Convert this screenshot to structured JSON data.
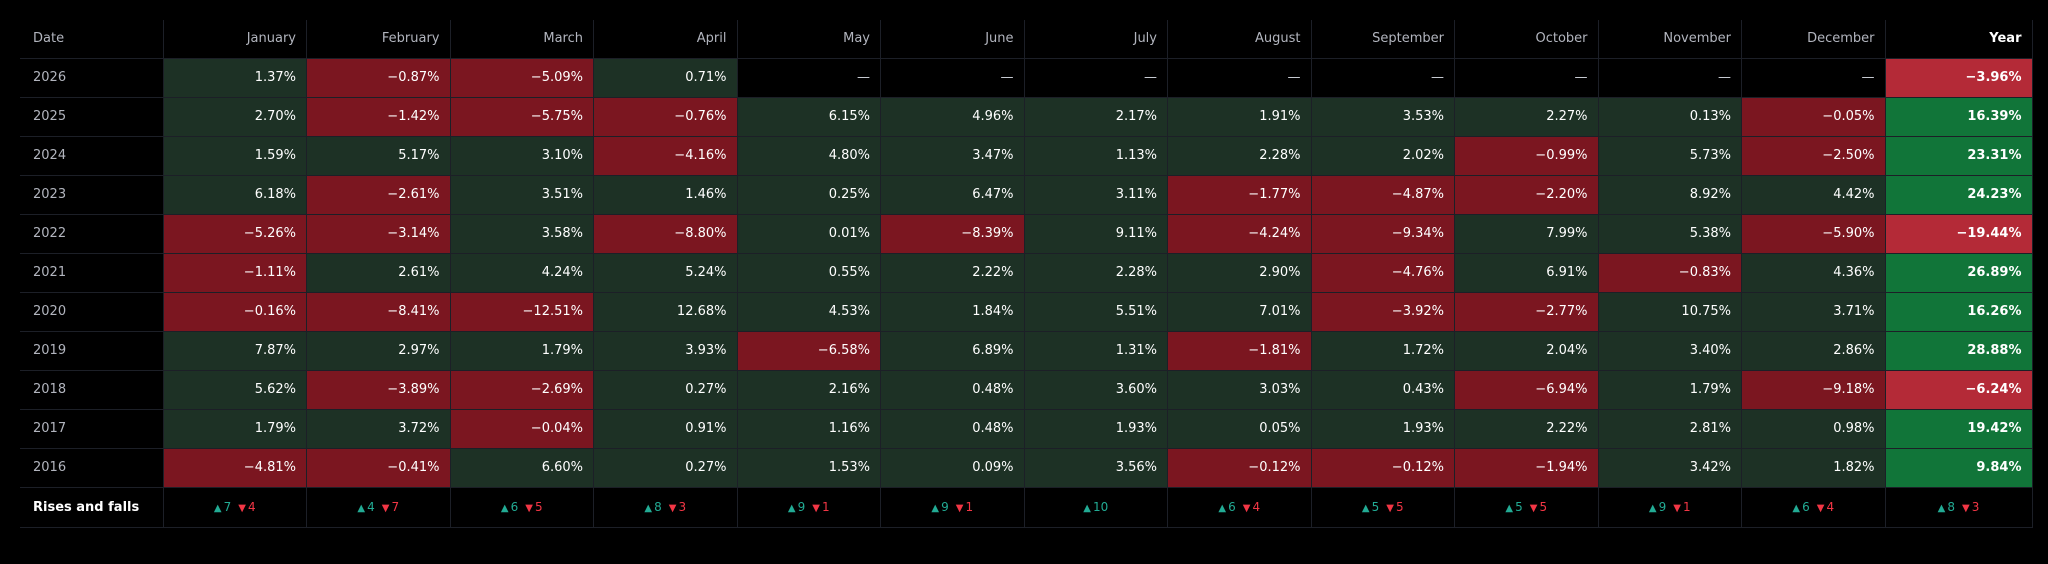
{
  "header": {
    "date_label": "Date",
    "months": [
      "January",
      "February",
      "March",
      "April",
      "May",
      "June",
      "July",
      "August",
      "September",
      "October",
      "November",
      "December"
    ],
    "year_label": "Year"
  },
  "rows": [
    {
      "year": "2026",
      "values": [
        "1.37%",
        "−0.87%",
        "−5.09%",
        "0.71%",
        "—",
        "—",
        "—",
        "—",
        "—",
        "—",
        "—",
        "—"
      ],
      "total": "−3.96%"
    },
    {
      "year": "2025",
      "values": [
        "2.70%",
        "−1.42%",
        "−5.75%",
        "−0.76%",
        "6.15%",
        "4.96%",
        "2.17%",
        "1.91%",
        "3.53%",
        "2.27%",
        "0.13%",
        "−0.05%"
      ],
      "total": "16.39%"
    },
    {
      "year": "2024",
      "values": [
        "1.59%",
        "5.17%",
        "3.10%",
        "−4.16%",
        "4.80%",
        "3.47%",
        "1.13%",
        "2.28%",
        "2.02%",
        "−0.99%",
        "5.73%",
        "−2.50%"
      ],
      "total": "23.31%"
    },
    {
      "year": "2023",
      "values": [
        "6.18%",
        "−2.61%",
        "3.51%",
        "1.46%",
        "0.25%",
        "6.47%",
        "3.11%",
        "−1.77%",
        "−4.87%",
        "−2.20%",
        "8.92%",
        "4.42%"
      ],
      "total": "24.23%"
    },
    {
      "year": "2022",
      "values": [
        "−5.26%",
        "−3.14%",
        "3.58%",
        "−8.80%",
        "0.01%",
        "−8.39%",
        "9.11%",
        "−4.24%",
        "−9.34%",
        "7.99%",
        "5.38%",
        "−5.90%"
      ],
      "total": "−19.44%"
    },
    {
      "year": "2021",
      "values": [
        "−1.11%",
        "2.61%",
        "4.24%",
        "5.24%",
        "0.55%",
        "2.22%",
        "2.28%",
        "2.90%",
        "−4.76%",
        "6.91%",
        "−0.83%",
        "4.36%"
      ],
      "total": "26.89%"
    },
    {
      "year": "2020",
      "values": [
        "−0.16%",
        "−8.41%",
        "−12.51%",
        "12.68%",
        "4.53%",
        "1.84%",
        "5.51%",
        "7.01%",
        "−3.92%",
        "−2.77%",
        "10.75%",
        "3.71%"
      ],
      "total": "16.26%"
    },
    {
      "year": "2019",
      "values": [
        "7.87%",
        "2.97%",
        "1.79%",
        "3.93%",
        "−6.58%",
        "6.89%",
        "1.31%",
        "−1.81%",
        "1.72%",
        "2.04%",
        "3.40%",
        "2.86%"
      ],
      "total": "28.88%"
    },
    {
      "year": "2018",
      "values": [
        "5.62%",
        "−3.89%",
        "−2.69%",
        "0.27%",
        "2.16%",
        "0.48%",
        "3.60%",
        "3.03%",
        "0.43%",
        "−6.94%",
        "1.79%",
        "−9.18%"
      ],
      "total": "−6.24%"
    },
    {
      "year": "2017",
      "values": [
        "1.79%",
        "3.72%",
        "−0.04%",
        "0.91%",
        "1.16%",
        "0.48%",
        "1.93%",
        "0.05%",
        "1.93%",
        "2.22%",
        "2.81%",
        "0.98%"
      ],
      "total": "19.42%"
    },
    {
      "year": "2016",
      "values": [
        "−4.81%",
        "−0.41%",
        "6.60%",
        "0.27%",
        "1.53%",
        "0.09%",
        "3.56%",
        "−0.12%",
        "−0.12%",
        "−1.94%",
        "3.42%",
        "1.82%"
      ],
      "total": "9.84%"
    }
  ],
  "rises_falls": {
    "label": "Rises and falls",
    "up_glyph": "▲",
    "down_glyph": "▼",
    "months": [
      {
        "up": "7",
        "down": "4"
      },
      {
        "up": "4",
        "down": "7"
      },
      {
        "up": "6",
        "down": "5"
      },
      {
        "up": "8",
        "down": "3"
      },
      {
        "up": "9",
        "down": "1"
      },
      {
        "up": "9",
        "down": "1"
      },
      {
        "up": "10",
        "down": ""
      },
      {
        "up": "6",
        "down": "4"
      },
      {
        "up": "5",
        "down": "5"
      },
      {
        "up": "5",
        "down": "5"
      },
      {
        "up": "9",
        "down": "1"
      },
      {
        "up": "6",
        "down": "4"
      }
    ],
    "year": {
      "up": "8",
      "down": "3"
    }
  },
  "colors": {
    "positive_cell": "#1d3125",
    "negative_cell": "#7b1620",
    "year_positive": "#117539",
    "year_negative": "#b42a37",
    "rise_text": "#22ab94",
    "fall_text": "#f23645"
  }
}
